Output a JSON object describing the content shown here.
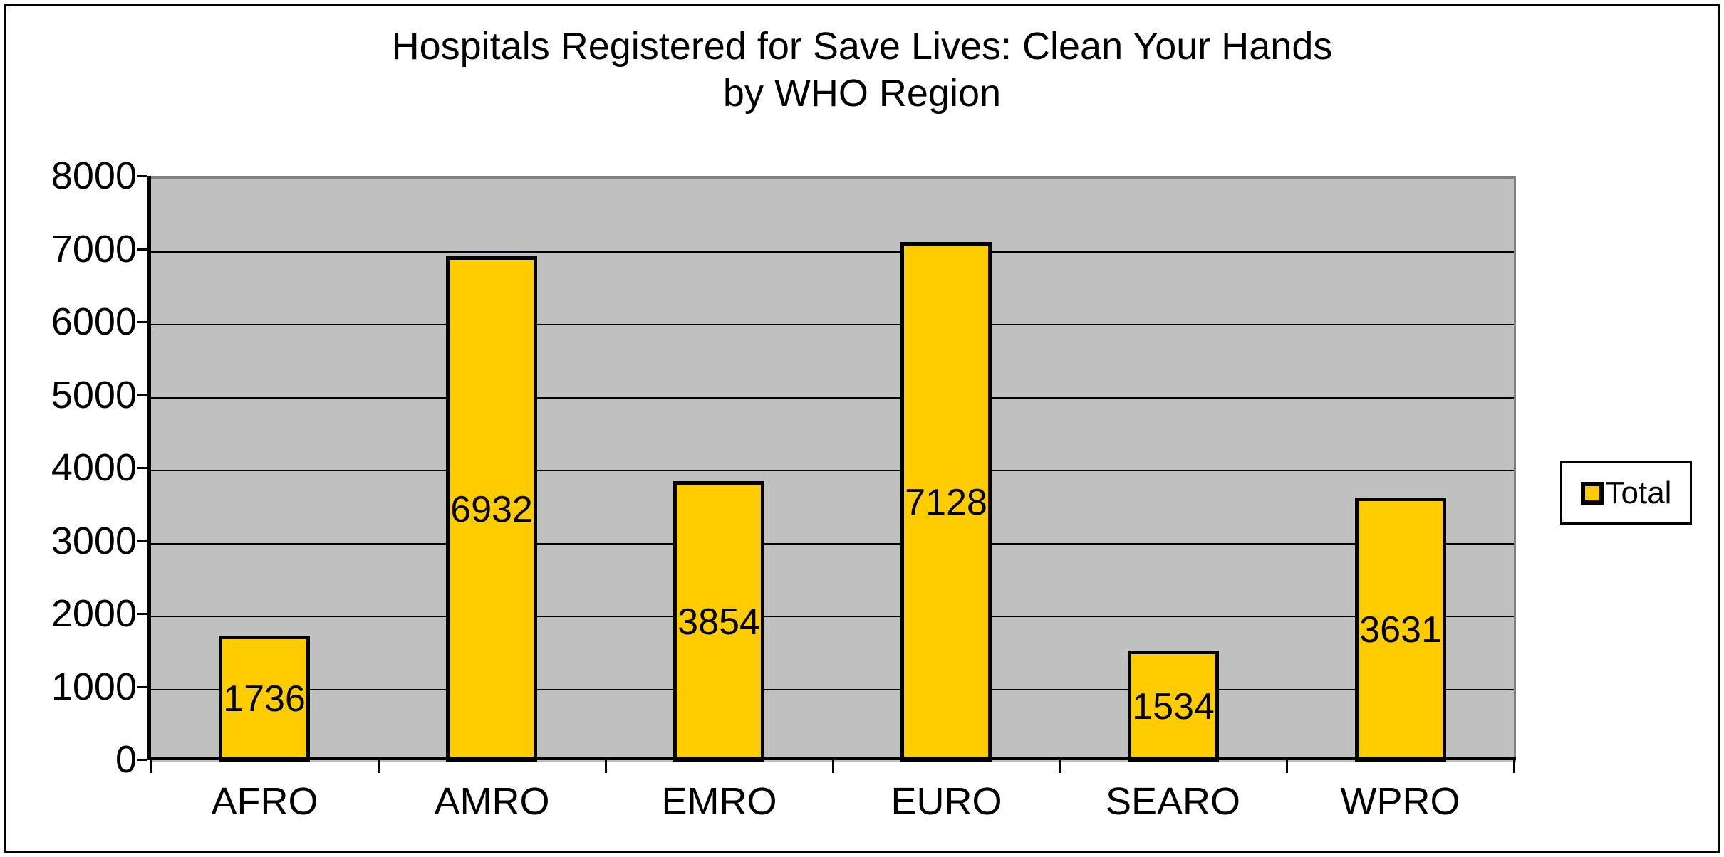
{
  "chart_data": {
    "type": "bar",
    "title_line1": "Hospitals Registered for Save Lives: Clean Your Hands",
    "title_line2": "by WHO Region",
    "categories": [
      "AFRO",
      "AMRO",
      "EMRO",
      "EURO",
      "SEARO",
      "WPRO"
    ],
    "series": [
      {
        "name": "Total",
        "values": [
          1736,
          6932,
          3854,
          7128,
          1534,
          3631
        ]
      }
    ],
    "data_labels_shown": true,
    "xlabel": "",
    "ylabel": "",
    "ylim": [
      0,
      8000
    ],
    "ytick_step": 1000,
    "ytick_labels": [
      "0",
      "1000",
      "2000",
      "3000",
      "4000",
      "5000",
      "6000",
      "7000",
      "8000"
    ],
    "grid": "horizontal-major",
    "legend_position": "right",
    "colors": {
      "bar_fill": "#FFCC00",
      "bar_border": "#000000",
      "plot_bg": "#C0C0C0",
      "plot_border": "#808080",
      "gridline": "#000000",
      "axis": "#000000",
      "text": "#000000",
      "legend_bg": "#FFFFFF",
      "outer_border": "#000000"
    }
  },
  "legend": {
    "label": "Total"
  }
}
